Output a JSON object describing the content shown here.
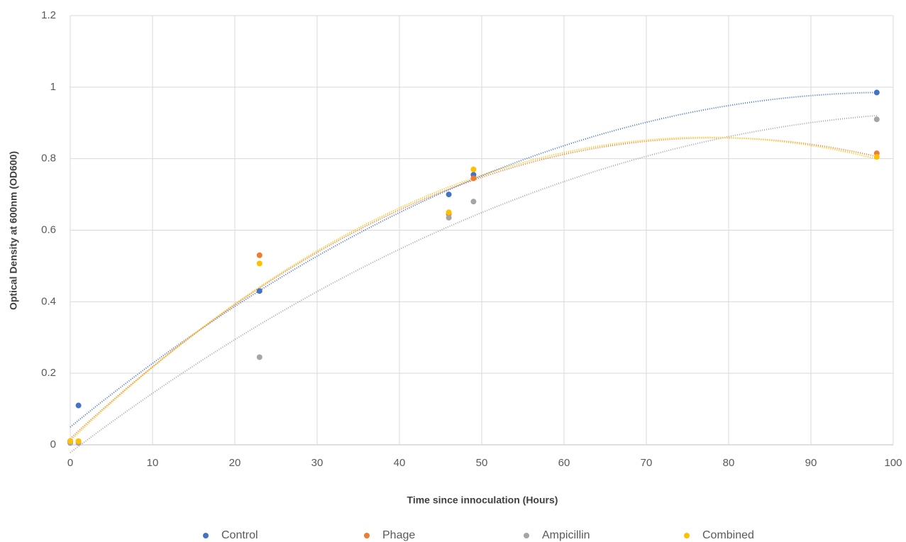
{
  "chart_data": {
    "type": "scatter",
    "xlabel": "Time since innoculation (Hours)",
    "ylabel": "Optical Density at 600nm (OD600)",
    "x": [
      0,
      1,
      23,
      46,
      49,
      98
    ],
    "series": [
      {
        "name": "Control",
        "color": "#4472c4",
        "values": [
          0.01,
          0.11,
          0.43,
          0.7,
          0.755,
          0.985
        ]
      },
      {
        "name": "Phage",
        "color": "#ed7d31",
        "values": [
          0.01,
          0.01,
          0.53,
          0.645,
          0.745,
          0.815
        ]
      },
      {
        "name": "Ampicillin",
        "color": "#a5a5a5",
        "values": [
          0.005,
          0.005,
          0.245,
          0.635,
          0.68,
          0.91
        ]
      },
      {
        "name": "Combined",
        "color": "#ffc000",
        "values": [
          0.01,
          0.01,
          0.507,
          0.65,
          0.77,
          0.805
        ]
      }
    ],
    "xlim": [
      0,
      100
    ],
    "xticks": [
      0,
      10,
      20,
      30,
      40,
      50,
      60,
      70,
      80,
      90,
      100
    ],
    "ylim": [
      0,
      1.2
    ],
    "yticks": [
      0,
      0.2,
      0.4,
      0.6,
      0.8,
      1,
      1.2
    ],
    "grid": true,
    "trendline": "polynomial-2",
    "legend": "bottom"
  }
}
